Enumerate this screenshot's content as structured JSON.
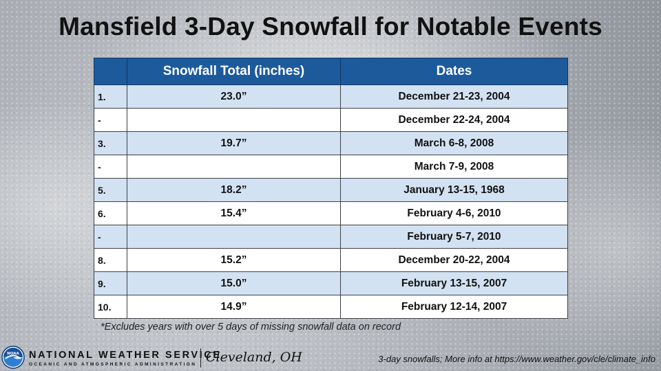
{
  "slide": {
    "title": "Mansfield 3-Day Snowfall for Notable Events",
    "footnote": "*Excludes years with over 5 days of missing snowfall data on record",
    "source_note": "3-day snowfalls; More info at https://www.weather.gov/cle/climate_info"
  },
  "table": {
    "headers": [
      "",
      "Snowfall Total (inches)",
      "Dates"
    ],
    "rows": [
      {
        "rank": "1.",
        "total": "23.0”",
        "dates": "December 21-23, 2004"
      },
      {
        "rank": "-",
        "total": "",
        "dates": "December 22-24, 2004"
      },
      {
        "rank": "3.",
        "total": "19.7”",
        "dates": "March 6-8, 2008"
      },
      {
        "rank": "-",
        "total": "",
        "dates": "March 7-9, 2008"
      },
      {
        "rank": "5.",
        "total": "18.2”",
        "dates": "January 13-15, 1968"
      },
      {
        "rank": "6.",
        "total": "15.4”",
        "dates": "February 4-6, 2010"
      },
      {
        "rank": "-",
        "total": "",
        "dates": "February 5-7, 2010"
      },
      {
        "rank": "8.",
        "total": "15.2”",
        "dates": "December 20-22, 2004"
      },
      {
        "rank": "9.",
        "total": "15.0”",
        "dates": "February 13-15, 2007"
      },
      {
        "rank": "10.",
        "total": "14.9”",
        "dates": "February 12-14, 2007"
      }
    ]
  },
  "branding": {
    "agency": "NATIONAL WEATHER SERVICE",
    "parent": "OCEANIC AND ATMOSPHERIC ADMINISTRATION",
    "office": "Cleveland, OH",
    "logo_text": "NOAA"
  },
  "colors": {
    "header_bg": "#1d5a9c",
    "row_shaded": "#d3e2f2",
    "row_plain": "#ffffff"
  }
}
